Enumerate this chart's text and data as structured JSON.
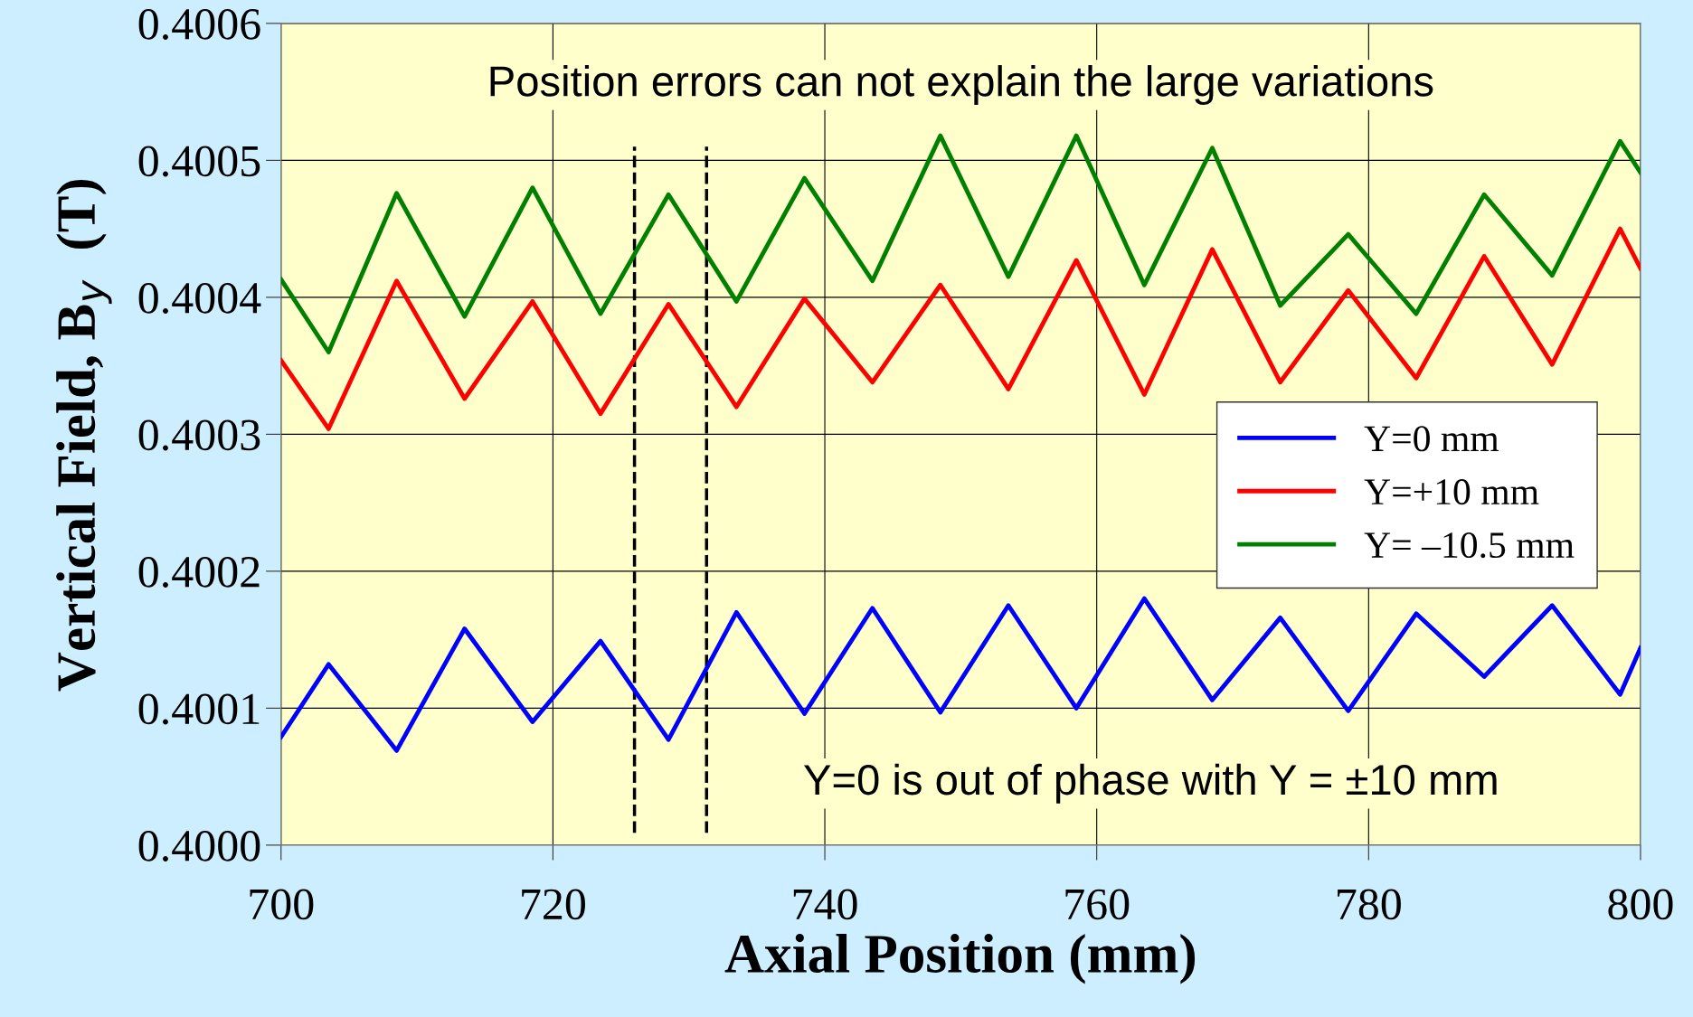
{
  "chart_data": {
    "type": "line",
    "xlabel": "Axial Position (mm)",
    "ylabel": "Vertical Field, B$_{y}$  (T)",
    "x": [
      700,
      703.5,
      708.5,
      713.5,
      718.5,
      723.5,
      728.5,
      733.5,
      738.5,
      743.5,
      748.5,
      753.5,
      758.5,
      763.5,
      768.5,
      773.5,
      778.5,
      783.5,
      788.5,
      793.5,
      798.5,
      800
    ],
    "series": [
      {
        "name": "Y=0 mm",
        "color": "#0000ff",
        "values": [
          0.400079,
          0.400132,
          0.400069,
          0.400158,
          0.40009,
          0.400149,
          0.400077,
          0.40017,
          0.400096,
          0.400173,
          0.400097,
          0.400175,
          0.4001,
          0.40018,
          0.400106,
          0.400166,
          0.400098,
          0.400169,
          0.400123,
          0.400175,
          0.40011,
          0.400144
        ]
      },
      {
        "name": "Y=+10 mm",
        "color": "#ff0000",
        "values": [
          0.400354,
          0.400304,
          0.400412,
          0.400326,
          0.400397,
          0.400315,
          0.400395,
          0.40032,
          0.400399,
          0.400338,
          0.400409,
          0.400333,
          0.400427,
          0.400329,
          0.400435,
          0.400338,
          0.400405,
          0.400341,
          0.40043,
          0.400351,
          0.40045,
          0.400421
        ]
      },
      {
        "name": "Y= –10.5 mm",
        "color": "#008000",
        "values": [
          0.400413,
          0.40036,
          0.400476,
          0.400386,
          0.40048,
          0.400388,
          0.400475,
          0.400397,
          0.400487,
          0.400412,
          0.400518,
          0.400415,
          0.400518,
          0.400409,
          0.400509,
          0.400394,
          0.400446,
          0.400388,
          0.400475,
          0.400416,
          0.400514,
          0.400491
        ]
      }
    ],
    "xlim": [
      700,
      800
    ],
    "xticks": [
      700,
      720,
      740,
      760,
      780,
      800
    ],
    "ylim": [
      0.4,
      0.4006
    ],
    "yticks": [
      {
        "value": 0.4,
        "label": "0.4000"
      },
      {
        "value": 0.4001,
        "label": "0.4001"
      },
      {
        "value": 0.4002,
        "label": "0.4002"
      },
      {
        "value": 0.4003,
        "label": "0.4003"
      },
      {
        "value": 0.4004,
        "label": "0.4004"
      },
      {
        "value": 0.4005,
        "label": "0.4005"
      },
      {
        "value": 0.4006,
        "label": "0.4006"
      }
    ],
    "ref_lines": [
      {
        "axis": "x",
        "value": 726.0,
        "label": null,
        "color": "#000000",
        "line_style": "dashed"
      },
      {
        "axis": "x",
        "value": 731.3,
        "label": null,
        "color": "#000000",
        "line_style": "dashed"
      }
    ],
    "annotations": [
      "Position errors can not explain the large variations",
      "Y=0 is out of phase with Y = ±10 mm"
    ],
    "grid": true,
    "legend": "right",
    "marker": "none",
    "line_style": "solid"
  }
}
